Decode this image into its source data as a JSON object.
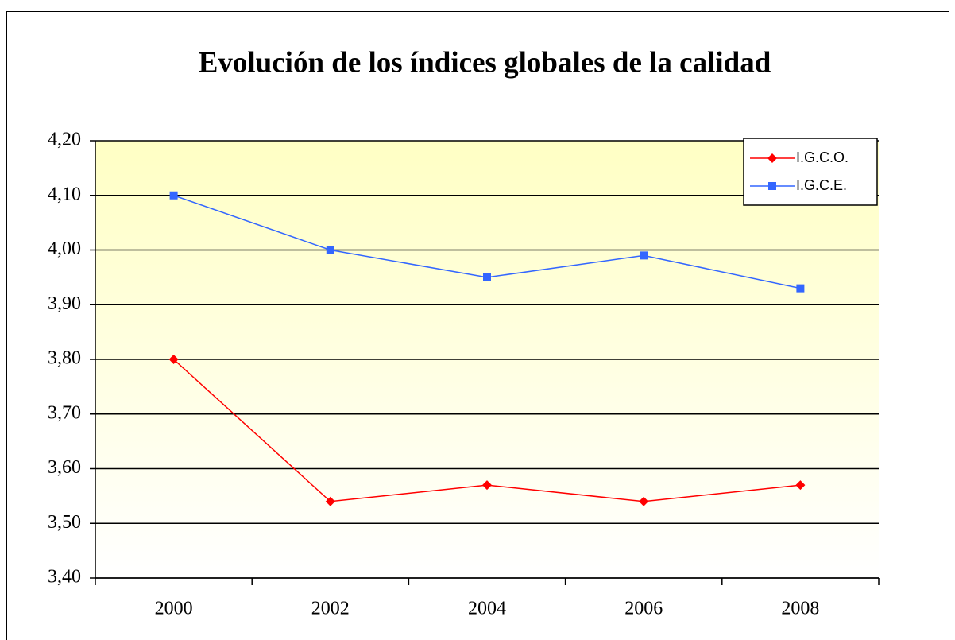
{
  "chart_data": {
    "type": "line",
    "title": "Evolución de los índices globales de la calidad",
    "categories": [
      "2000",
      "2002",
      "2004",
      "2006",
      "2008"
    ],
    "series": [
      {
        "name": "I.G.C.O.",
        "color": "#ff0000",
        "marker": "diamond",
        "values": [
          3.8,
          3.54,
          3.57,
          3.54,
          3.57
        ]
      },
      {
        "name": "I.G.C.E.",
        "color": "#3366ff",
        "marker": "square",
        "values": [
          4.1,
          4.0,
          3.95,
          3.99,
          3.93
        ]
      }
    ],
    "ylim": [
      3.4,
      4.2
    ],
    "yticks": [
      {
        "value": 3.4,
        "label": "3,40"
      },
      {
        "value": 3.5,
        "label": "3,50"
      },
      {
        "value": 3.6,
        "label": "3,60"
      },
      {
        "value": 3.7,
        "label": "3,70"
      },
      {
        "value": 3.8,
        "label": "3,80"
      },
      {
        "value": 3.9,
        "label": "3,90"
      },
      {
        "value": 4.0,
        "label": "4,00"
      },
      {
        "value": 4.1,
        "label": "4,10"
      },
      {
        "value": 4.2,
        "label": "4,20"
      }
    ],
    "grid": true,
    "legend": "top-right"
  }
}
